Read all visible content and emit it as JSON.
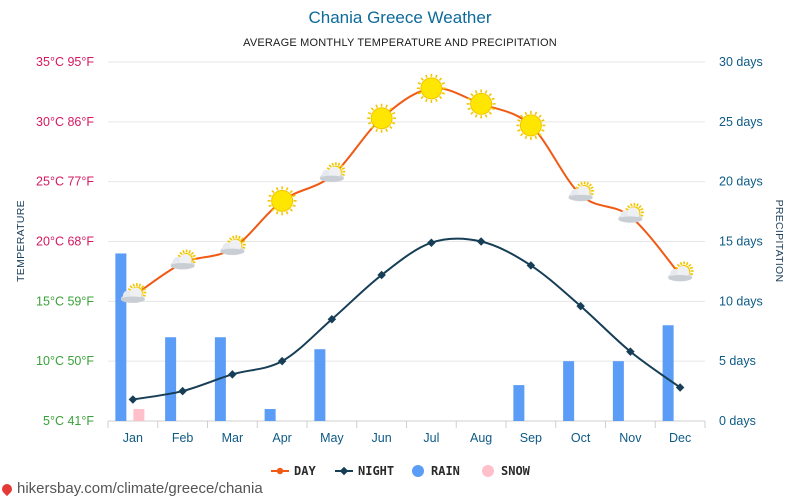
{
  "chart_data": {
    "type": "line",
    "title": "Chania Greece Weather",
    "subtitle": "AVERAGE MONTHLY TEMPERATURE AND PRECIPITATION",
    "left_axis_label": "TEMPERATURE",
    "right_axis_label": "PRECIPITATION",
    "categories": [
      "Jan",
      "Feb",
      "Mar",
      "Apr",
      "May",
      "Jun",
      "Jul",
      "Aug",
      "Sep",
      "Oct",
      "Nov",
      "Dec"
    ],
    "temp_ticks": [
      {
        "c": 5,
        "label": "5°C 41°F",
        "color": "#3aa13a"
      },
      {
        "c": 10,
        "label": "10°C 50°F",
        "color": "#3aa13a"
      },
      {
        "c": 15,
        "label": "15°C 59°F",
        "color": "#3aa13a"
      },
      {
        "c": 20,
        "label": "20°C 68°F",
        "color": "#d6185f"
      },
      {
        "c": 25,
        "label": "25°C 77°F",
        "color": "#d6185f"
      },
      {
        "c": 30,
        "label": "30°C 86°F",
        "color": "#d6185f"
      },
      {
        "c": 35,
        "label": "35°C 95°F",
        "color": "#d6185f"
      }
    ],
    "precip_ticks": [
      {
        "v": 0,
        "label": "0 days"
      },
      {
        "v": 5,
        "label": "5 days"
      },
      {
        "v": 10,
        "label": "10 days"
      },
      {
        "v": 15,
        "label": "15 days"
      },
      {
        "v": 20,
        "label": "20 days"
      },
      {
        "v": 25,
        "label": "25 days"
      },
      {
        "v": 30,
        "label": "30 days"
      }
    ],
    "temp_range": [
      5,
      35
    ],
    "precip_range": [
      0,
      30
    ],
    "series": [
      {
        "name": "DAY",
        "color": "#f05a14",
        "values": [
          15.4,
          18.2,
          19.4,
          23.4,
          25.5,
          30.3,
          32.8,
          31.5,
          29.7,
          23.9,
          22.1,
          17.2
        ]
      },
      {
        "name": "NIGHT",
        "color": "#163e56",
        "values": [
          6.8,
          7.5,
          8.9,
          10.0,
          13.5,
          17.2,
          19.9,
          20.0,
          18.0,
          14.6,
          10.8,
          7.8
        ]
      },
      {
        "name": "RAIN",
        "color": "#5b9cf6",
        "values": [
          14,
          7,
          7,
          1,
          6,
          0,
          0,
          0,
          3,
          5,
          5,
          8
        ]
      },
      {
        "name": "SNOW",
        "color": "#ffc0cb",
        "values": [
          1,
          0,
          0,
          0,
          0,
          0,
          0,
          0,
          0,
          0,
          0,
          0
        ]
      }
    ],
    "weather_icons": [
      "sun-cloud",
      "sun-cloud",
      "sun-cloud",
      "sun",
      "sun-cloud",
      "sun",
      "sun",
      "sun",
      "sun",
      "sun-cloud",
      "sun-cloud",
      "sun-cloud"
    ],
    "legend_position": "bottom",
    "grid": true
  },
  "footer": {
    "source": "hikersbay.com/climate/greece/chania"
  }
}
